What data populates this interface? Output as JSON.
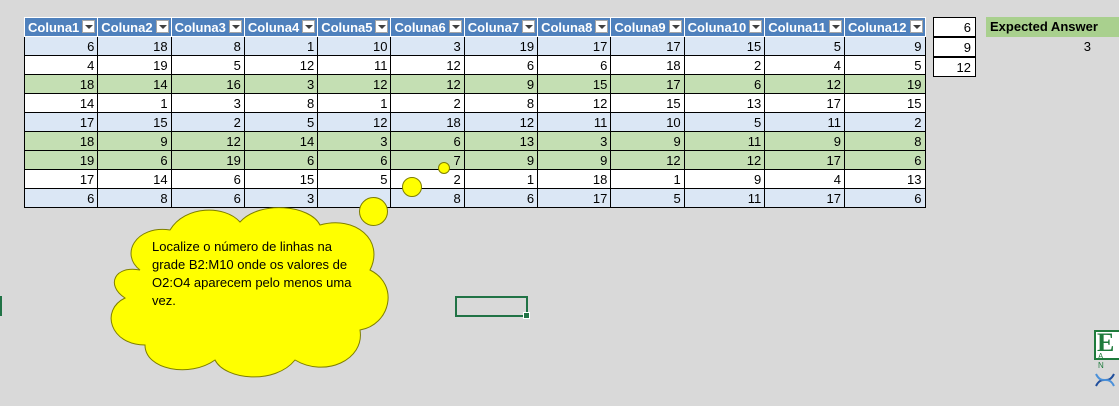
{
  "table": {
    "headers": [
      "Coluna1",
      "Coluna2",
      "Coluna3",
      "Coluna4",
      "Coluna5",
      "Coluna6",
      "Coluna7",
      "Coluna8",
      "Coluna9",
      "Coluna10",
      "Coluna11",
      "Coluna12"
    ],
    "rows": [
      [
        "6",
        "18",
        "8",
        "1",
        "10",
        "3",
        "19",
        "17",
        "17",
        "15",
        "5",
        "9"
      ],
      [
        "4",
        "19",
        "5",
        "12",
        "11",
        "12",
        "6",
        "6",
        "18",
        "2",
        "4",
        "5"
      ],
      [
        "18",
        "14",
        "16",
        "3",
        "12",
        "12",
        "9",
        "15",
        "17",
        "6",
        "12",
        "19"
      ],
      [
        "14",
        "1",
        "3",
        "8",
        "1",
        "2",
        "8",
        "12",
        "15",
        "13",
        "17",
        "15"
      ],
      [
        "17",
        "15",
        "2",
        "5",
        "12",
        "18",
        "12",
        "11",
        "10",
        "5",
        "11",
        "2"
      ],
      [
        "18",
        "9",
        "12",
        "14",
        "3",
        "6",
        "13",
        "3",
        "9",
        "11",
        "9",
        "8"
      ],
      [
        "19",
        "6",
        "19",
        "6",
        "6",
        "7",
        "9",
        "9",
        "12",
        "12",
        "17",
        "6"
      ],
      [
        "17",
        "14",
        "6",
        "15",
        "5",
        "2",
        "1",
        "18",
        "1",
        "9",
        "4",
        "13"
      ],
      [
        "6",
        "8",
        "6",
        "3",
        "",
        "8",
        "6",
        "17",
        "5",
        "11",
        "17",
        "6"
      ]
    ],
    "row_styles": [
      "blue",
      "white",
      "green",
      "white",
      "blue",
      "green",
      "green",
      "white",
      "blue"
    ]
  },
  "criteria": {
    "values": [
      "6",
      "9",
      "12"
    ]
  },
  "expected": {
    "label": "Expected Answer",
    "value": "3"
  },
  "callout": {
    "text": "Localize o número de linhas na grade B2:M10 onde os valores de O2:O4 aparecem pelo menos uma vez."
  },
  "logo": {
    "letter": "E",
    "sub": "A N"
  },
  "colors": {
    "header": "#4f81bd",
    "band_blue": "#dbe7f5",
    "band_green": "#c4dfb3",
    "callout": "#ffff00",
    "expected_header": "#a9d08e",
    "selection": "#217346"
  }
}
